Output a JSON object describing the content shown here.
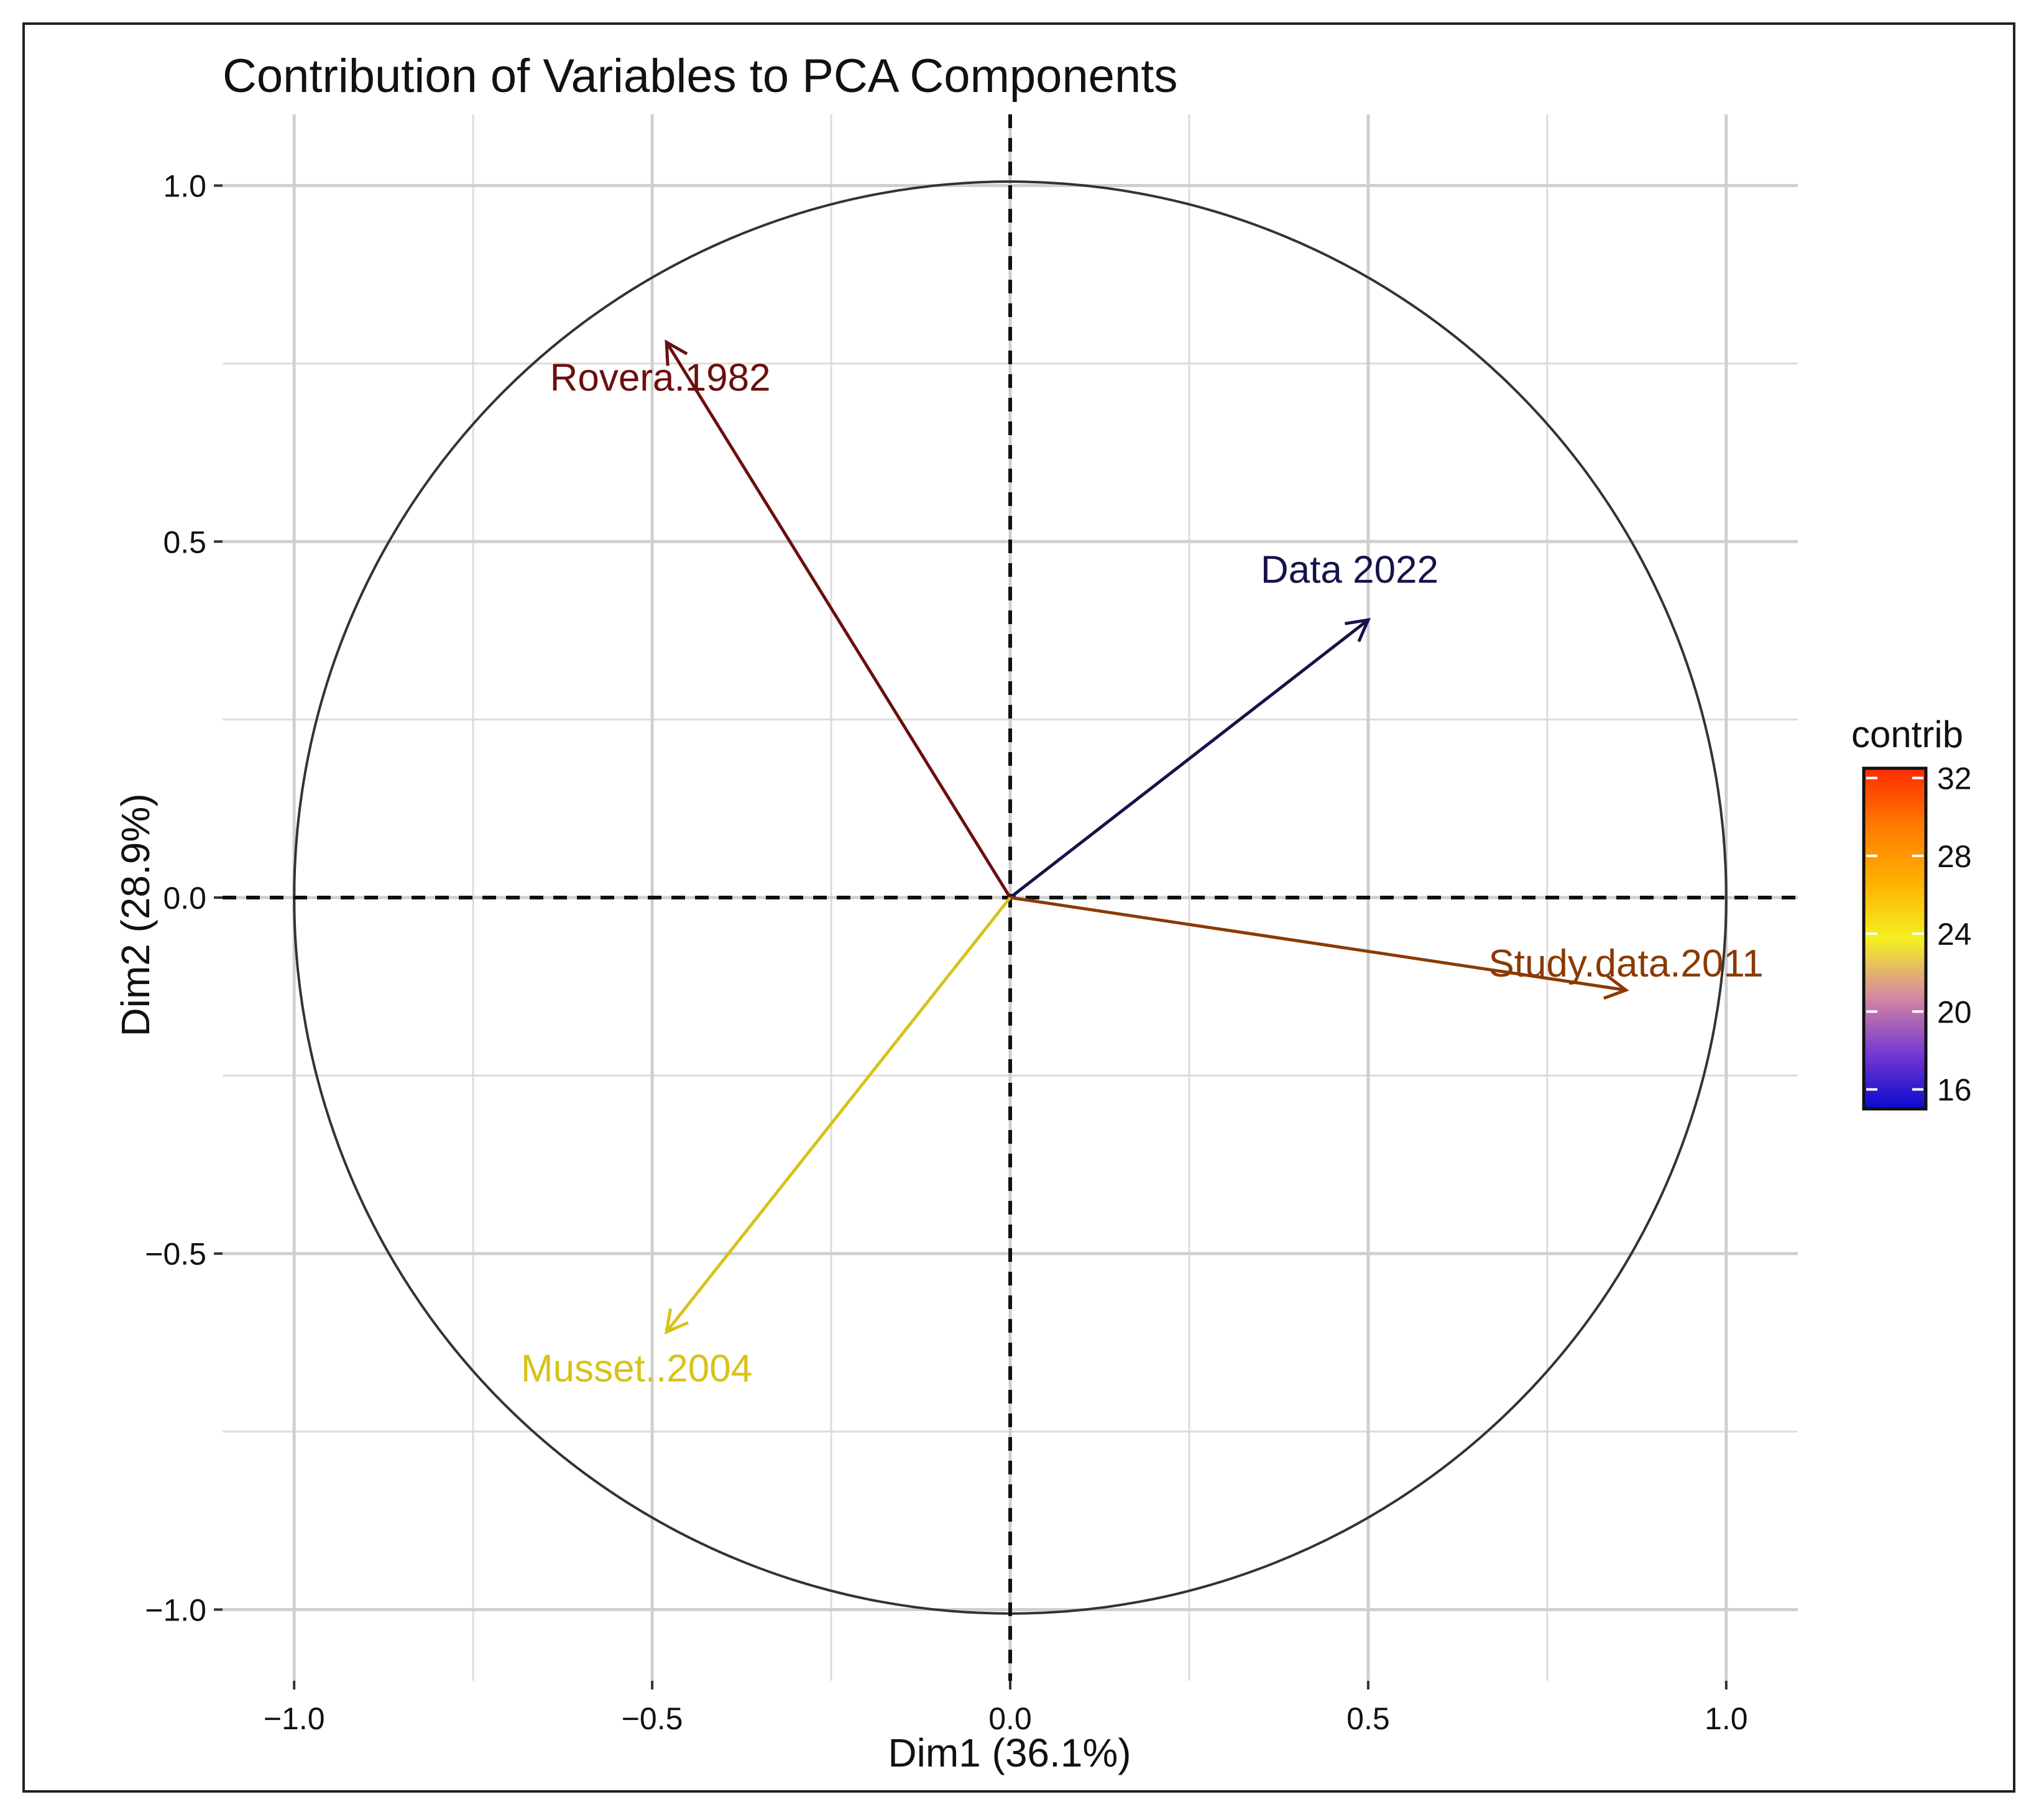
{
  "chart_data": {
    "type": "scatter",
    "subtype": "pca-variable-correlation-circle",
    "title": "Contribution of Variables to PCA Components",
    "xlabel": "Dim1 (36.1%)",
    "ylabel": "Dim2 (28.9%)",
    "xlim": [
      -1.1,
      1.1
    ],
    "ylim": [
      -1.1,
      1.1
    ],
    "xticks": [
      -1.0,
      -0.5,
      0.0,
      0.5,
      1.0
    ],
    "yticks": [
      -1.0,
      -0.5,
      0.0,
      0.5,
      1.0
    ],
    "xtick_labels": [
      "−1.0",
      "−0.5",
      "0.0",
      "0.5",
      "1.0"
    ],
    "ytick_labels": [
      "−1.0",
      "−0.5",
      "0.0",
      "0.5",
      "1.0"
    ],
    "grid": true,
    "unit_circle": true,
    "reference_lines": {
      "x0": true,
      "y0": true,
      "style": "dashed"
    },
    "variables": [
      {
        "name": "Rovera.1982",
        "x": -0.48,
        "y": 0.78,
        "contrib": 30,
        "color": "#6b0f0f"
      },
      {
        "name": "Data 2022",
        "x": 0.5,
        "y": 0.39,
        "contrib": 16,
        "color": "#14144a"
      },
      {
        "name": "Study.data.2011",
        "x": 0.86,
        "y": -0.13,
        "contrib": 29,
        "color": "#8a3a00"
      },
      {
        "name": "Musset..2004",
        "x": -0.48,
        "y": -0.61,
        "contrib": 25,
        "color": "#d8c21a"
      }
    ],
    "legend": {
      "title": "contrib",
      "placement": "right",
      "range": [
        15,
        32.5
      ],
      "ticks": [
        16,
        20,
        24,
        28,
        32
      ],
      "tick_labels": [
        "16",
        "20",
        "24",
        "28",
        "32"
      ],
      "colors": [
        "#0a0ad0",
        "#7a3ad0",
        "#d88aa0",
        "#f5f020",
        "#ffb000",
        "#ff7a00",
        "#ff2a00"
      ]
    }
  }
}
